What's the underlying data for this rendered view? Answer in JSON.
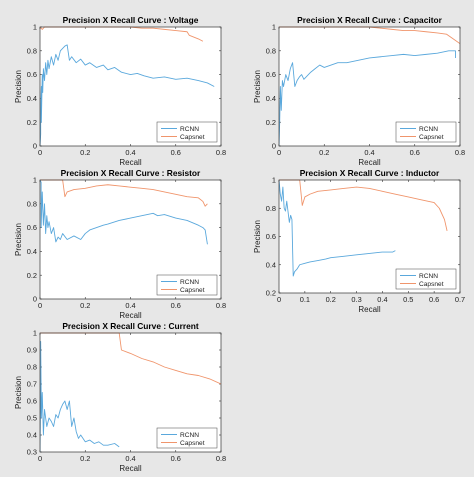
{
  "figure": {
    "background": "#e7e7e7"
  },
  "legend_labels": [
    "RCNN",
    "Capsnet"
  ],
  "colors": {
    "RCNN": "#5aa8dc",
    "Capsnet": "#f0956c"
  },
  "chart_data": [
    {
      "type": "line",
      "title": "Precision X Recall Curve : Voltage",
      "xlabel": "Recall",
      "ylabel": "Precision",
      "xlim": [
        0,
        0.8
      ],
      "ylim": [
        0,
        1
      ],
      "xticks": [
        "0",
        "0.2",
        "0.4",
        "0.6",
        "0.8"
      ],
      "yticks": [
        "0",
        "0.2",
        "0.4",
        "0.6",
        "0.8",
        "1"
      ],
      "legend_position": "bottom-right",
      "series": [
        {
          "name": "RCNN",
          "x": [
            0,
            0.003,
            0.003,
            0.006,
            0.006,
            0.01,
            0.012,
            0.015,
            0.02,
            0.025,
            0.03,
            0.035,
            0.04,
            0.05,
            0.06,
            0.07,
            0.08,
            0.09,
            0.1,
            0.11,
            0.12,
            0.13,
            0.14,
            0.16,
            0.18,
            0.2,
            0.22,
            0.25,
            0.28,
            0.3,
            0.33,
            0.36,
            0.4,
            0.43,
            0.46,
            0.5,
            0.55,
            0.6,
            0.65,
            0.7,
            0.74,
            0.77
          ],
          "y": [
            0,
            0.1,
            0.3,
            0.5,
            0.2,
            0.6,
            0.45,
            0.65,
            0.55,
            0.7,
            0.6,
            0.72,
            0.65,
            0.75,
            0.68,
            0.77,
            0.72,
            0.8,
            0.82,
            0.84,
            0.85,
            0.72,
            0.75,
            0.7,
            0.73,
            0.68,
            0.7,
            0.66,
            0.68,
            0.64,
            0.66,
            0.62,
            0.6,
            0.61,
            0.59,
            0.57,
            0.58,
            0.56,
            0.57,
            0.55,
            0.53,
            0.5
          ]
        },
        {
          "name": "Capsnet",
          "x": [
            0,
            0.01,
            0.02,
            0.04,
            0.1,
            0.2,
            0.3,
            0.4,
            0.45,
            0.5,
            0.55,
            0.6,
            0.65,
            0.66,
            0.7,
            0.72
          ],
          "y": [
            1,
            0.98,
            1,
            1,
            1,
            1,
            1,
            1,
            0.99,
            0.99,
            0.98,
            0.97,
            0.96,
            0.93,
            0.9,
            0.88
          ]
        }
      ]
    },
    {
      "type": "line",
      "title": "Precision X Recall Curve : Capacitor",
      "xlabel": "Recall",
      "ylabel": "Precision",
      "xlim": [
        0,
        0.8
      ],
      "ylim": [
        0,
        1
      ],
      "xticks": [
        "0",
        "0.2",
        "0.4",
        "0.6",
        "0.8"
      ],
      "yticks": [
        "0",
        "0.2",
        "0.4",
        "0.6",
        "0.8",
        "1"
      ],
      "legend_position": "bottom-right",
      "series": [
        {
          "name": "RCNN",
          "x": [
            0,
            0.003,
            0.006,
            0.01,
            0.015,
            0.02,
            0.03,
            0.04,
            0.05,
            0.06,
            0.07,
            0.08,
            0.09,
            0.1,
            0.11,
            0.12,
            0.14,
            0.16,
            0.18,
            0.2,
            0.23,
            0.26,
            0.3,
            0.35,
            0.4,
            0.45,
            0.5,
            0.55,
            0.6,
            0.65,
            0.7,
            0.75,
            0.78,
            0.78
          ],
          "y": [
            0,
            0.2,
            0.5,
            0.3,
            0.55,
            0.5,
            0.6,
            0.55,
            0.65,
            0.7,
            0.5,
            0.55,
            0.58,
            0.6,
            0.56,
            0.58,
            0.62,
            0.65,
            0.68,
            0.66,
            0.68,
            0.7,
            0.7,
            0.72,
            0.74,
            0.75,
            0.76,
            0.77,
            0.76,
            0.77,
            0.78,
            0.8,
            0.8,
            0.74
          ]
        },
        {
          "name": "Capsnet",
          "x": [
            0,
            0.01,
            0.05,
            0.1,
            0.2,
            0.3,
            0.4,
            0.5,
            0.55,
            0.6,
            0.65,
            0.7,
            0.74,
            0.77,
            0.8
          ],
          "y": [
            1,
            1,
            1,
            1,
            1,
            1,
            1,
            0.98,
            0.97,
            0.97,
            0.96,
            0.95,
            0.94,
            0.9,
            0.86
          ]
        }
      ]
    },
    {
      "type": "line",
      "title": "Precision X Recall Curve : Resistor",
      "xlabel": "Recall",
      "ylabel": "Precision",
      "xlim": [
        0,
        0.8
      ],
      "ylim": [
        0,
        1
      ],
      "xticks": [
        "0",
        "0.2",
        "0.4",
        "0.6",
        "0.8"
      ],
      "yticks": [
        "0",
        "0.2",
        "0.4",
        "0.6",
        "0.8",
        "1"
      ],
      "legend_position": "bottom-right",
      "series": [
        {
          "name": "RCNN",
          "x": [
            0,
            0.005,
            0.005,
            0.01,
            0.015,
            0.02,
            0.025,
            0.03,
            0.035,
            0.04,
            0.05,
            0.06,
            0.07,
            0.08,
            0.09,
            0.1,
            0.12,
            0.15,
            0.18,
            0.2,
            0.22,
            0.25,
            0.28,
            0.3,
            0.35,
            0.4,
            0.45,
            0.5,
            0.52,
            0.55,
            0.6,
            0.65,
            0.7,
            0.72,
            0.73,
            0.74
          ],
          "y": [
            1,
            0.98,
            0.6,
            0.9,
            0.62,
            0.8,
            0.55,
            0.7,
            0.6,
            0.65,
            0.55,
            0.6,
            0.48,
            0.52,
            0.5,
            0.55,
            0.5,
            0.53,
            0.5,
            0.55,
            0.58,
            0.6,
            0.62,
            0.63,
            0.66,
            0.68,
            0.7,
            0.72,
            0.7,
            0.71,
            0.68,
            0.66,
            0.62,
            0.6,
            0.58,
            0.46
          ]
        },
        {
          "name": "Capsnet",
          "x": [
            0,
            0.05,
            0.1,
            0.11,
            0.12,
            0.15,
            0.2,
            0.25,
            0.3,
            0.35,
            0.4,
            0.45,
            0.5,
            0.55,
            0.6,
            0.65,
            0.7,
            0.72,
            0.73,
            0.74
          ],
          "y": [
            1,
            1,
            1,
            0.86,
            0.9,
            0.92,
            0.93,
            0.95,
            0.96,
            0.95,
            0.94,
            0.93,
            0.92,
            0.9,
            0.88,
            0.86,
            0.85,
            0.82,
            0.78,
            0.8
          ]
        }
      ]
    },
    {
      "type": "line",
      "title": "Precision X Recall Curve : Inductor",
      "xlabel": "Recall",
      "ylabel": "Precision",
      "xlim": [
        0,
        0.7
      ],
      "ylim": [
        0.2,
        1
      ],
      "xticks": [
        "0",
        "0.1",
        "0.2",
        "0.3",
        "0.4",
        "0.5",
        "0.6",
        "0.7"
      ],
      "yticks": [
        "0.2",
        "0.4",
        "0.6",
        "0.8",
        "1"
      ],
      "legend_position": "bottom-right",
      "series": [
        {
          "name": "RCNN",
          "x": [
            0,
            0.005,
            0.01,
            0.015,
            0.02,
            0.025,
            0.03,
            0.04,
            0.045,
            0.05,
            0.055,
            0.06,
            0.07,
            0.08,
            0.1,
            0.12,
            0.15,
            0.18,
            0.2,
            0.25,
            0.3,
            0.35,
            0.4,
            0.44,
            0.45
          ],
          "y": [
            1,
            0.9,
            0.85,
            0.95,
            0.8,
            0.78,
            0.85,
            0.7,
            0.75,
            0.72,
            0.32,
            0.35,
            0.37,
            0.4,
            0.41,
            0.42,
            0.43,
            0.44,
            0.45,
            0.46,
            0.47,
            0.48,
            0.49,
            0.49,
            0.5
          ]
        },
        {
          "name": "Capsnet",
          "x": [
            0,
            0.05,
            0.08,
            0.09,
            0.1,
            0.12,
            0.15,
            0.2,
            0.25,
            0.3,
            0.35,
            0.4,
            0.45,
            0.5,
            0.55,
            0.6,
            0.62,
            0.64,
            0.65
          ],
          "y": [
            1,
            1,
            1,
            0.82,
            0.88,
            0.9,
            0.92,
            0.93,
            0.94,
            0.95,
            0.94,
            0.92,
            0.9,
            0.88,
            0.86,
            0.84,
            0.8,
            0.72,
            0.64
          ]
        }
      ]
    },
    {
      "type": "line",
      "title": "Precision X Recall Curve : Current",
      "xlabel": "Recall",
      "ylabel": "Precision",
      "xlim": [
        0,
        0.8
      ],
      "ylim": [
        0.3,
        1
      ],
      "xticks": [
        "0",
        "0.2",
        "0.4",
        "0.6",
        "0.8"
      ],
      "yticks": [
        "0.3",
        "0.4",
        "0.5",
        "0.6",
        "0.7",
        "0.8",
        "0.9",
        "1"
      ],
      "legend_position": "bottom-right",
      "series": [
        {
          "name": "RCNN",
          "x": [
            0,
            0.003,
            0.003,
            0.006,
            0.01,
            0.015,
            0.02,
            0.03,
            0.04,
            0.05,
            0.06,
            0.07,
            0.08,
            0.09,
            0.1,
            0.11,
            0.12,
            0.13,
            0.14,
            0.15,
            0.16,
            0.17,
            0.18,
            0.2,
            0.22,
            0.24,
            0.26,
            0.28,
            0.3,
            0.33,
            0.35
          ],
          "y": [
            0.3,
            0.7,
            0.95,
            0.5,
            0.65,
            0.4,
            0.55,
            0.45,
            0.5,
            0.48,
            0.45,
            0.52,
            0.5,
            0.55,
            0.58,
            0.6,
            0.55,
            0.6,
            0.45,
            0.5,
            0.42,
            0.38,
            0.4,
            0.36,
            0.37,
            0.35,
            0.36,
            0.34,
            0.34,
            0.35,
            0.33
          ]
        },
        {
          "name": "Capsnet",
          "x": [
            0,
            0.05,
            0.1,
            0.2,
            0.3,
            0.35,
            0.36,
            0.4,
            0.45,
            0.5,
            0.55,
            0.6,
            0.65,
            0.7,
            0.75,
            0.8
          ],
          "y": [
            1,
            1,
            1,
            1,
            1,
            1,
            0.9,
            0.88,
            0.85,
            0.83,
            0.8,
            0.78,
            0.76,
            0.75,
            0.73,
            0.7
          ]
        }
      ]
    }
  ]
}
